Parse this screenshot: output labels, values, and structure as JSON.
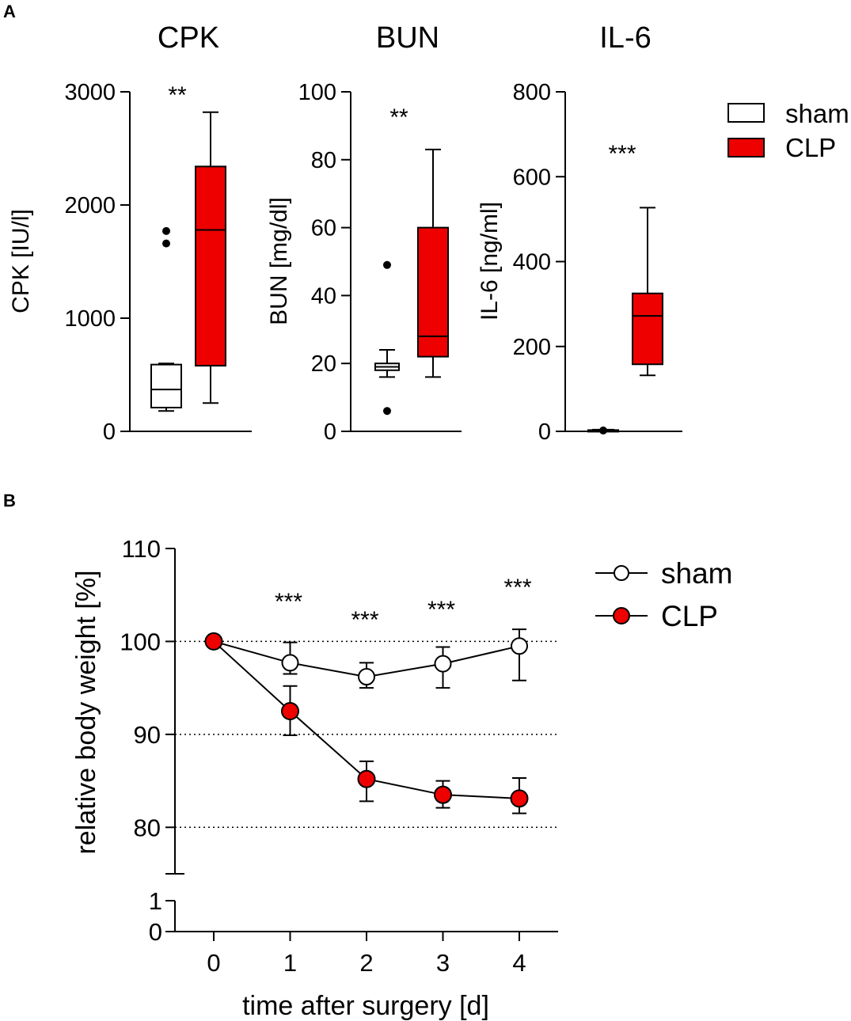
{
  "panel_a_label": "A",
  "panel_b_label": "B",
  "colors": {
    "sham": "#ffffff",
    "clp": "#ee0000",
    "axis": "#000000"
  },
  "chart_data": [
    {
      "type": "box",
      "title": "CPK",
      "ylabel": "CPK [IU/l]",
      "ylim": [
        0,
        3000
      ],
      "yticks": [
        0,
        1000,
        2000,
        3000
      ],
      "significance": "**",
      "groups": [
        {
          "name": "sham",
          "whisker_low": 180,
          "q1": 210,
          "median": 370,
          "q3": 590,
          "whisker_high": 600,
          "outliers": [
            1660,
            1770
          ]
        },
        {
          "name": "CLP",
          "whisker_low": 250,
          "q1": 580,
          "median": 1780,
          "q3": 2340,
          "whisker_high": 2820,
          "outliers": []
        }
      ]
    },
    {
      "type": "box",
      "title": "BUN",
      "ylabel": "BUN [mg/dl]",
      "ylim": [
        0,
        100
      ],
      "yticks": [
        0,
        20,
        40,
        60,
        80,
        100
      ],
      "significance": "**",
      "groups": [
        {
          "name": "sham",
          "whisker_low": 16,
          "q1": 18,
          "median": 19,
          "q3": 20,
          "whisker_high": 24,
          "outliers": [
            6,
            49
          ]
        },
        {
          "name": "CLP",
          "whisker_low": 16,
          "q1": 22,
          "median": 28,
          "q3": 60,
          "whisker_high": 83,
          "outliers": []
        }
      ]
    },
    {
      "type": "box",
      "title": "IL-6",
      "ylabel": "IL-6 [ng/ml]",
      "ylim": [
        0,
        800
      ],
      "yticks": [
        0,
        200,
        400,
        600,
        800
      ],
      "significance": "***",
      "groups": [
        {
          "name": "sham",
          "whisker_low": 0,
          "q1": 1,
          "median": 2,
          "q3": 3,
          "whisker_high": 4,
          "outliers": [
            2
          ]
        },
        {
          "name": "CLP",
          "whisker_low": 132,
          "q1": 158,
          "median": 272,
          "q3": 325,
          "whisker_high": 527,
          "outliers": []
        }
      ]
    },
    {
      "type": "line",
      "ylabel": "relative body weight [%]",
      "xlabel": "time after surgery [d]",
      "x": [
        0,
        1,
        2,
        3,
        4
      ],
      "ylim": [
        75,
        110
      ],
      "yticks": [
        80,
        90,
        100,
        110
      ],
      "ybreak_ticks": [
        0,
        1
      ],
      "gridlines": [
        80,
        90,
        100
      ],
      "significance": [
        "***",
        "***",
        "***",
        "***"
      ],
      "series": [
        {
          "name": "sham",
          "values": [
            100,
            97.7,
            96.2,
            97.6,
            99.5
          ],
          "err_up": [
            0,
            2.2,
            1.5,
            1.8,
            1.8
          ],
          "err_down": [
            0,
            1.2,
            1.2,
            2.6,
            3.7
          ]
        },
        {
          "name": "CLP",
          "values": [
            100,
            92.5,
            85.2,
            83.5,
            83.1
          ],
          "err_up": [
            0,
            2.7,
            1.9,
            1.5,
            2.2
          ],
          "err_down": [
            0,
            2.6,
            2.4,
            1.4,
            1.6
          ]
        }
      ]
    }
  ],
  "legend_a": [
    "sham",
    "CLP"
  ],
  "legend_b": [
    "sham",
    "CLP"
  ]
}
